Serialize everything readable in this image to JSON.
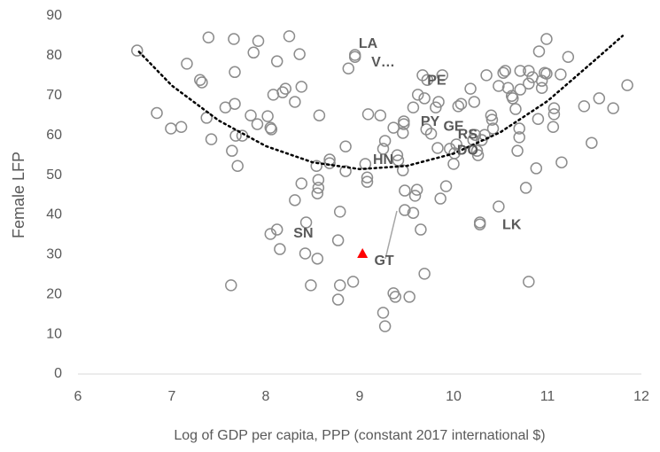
{
  "chart_data": {
    "type": "scatter",
    "x_label": "Log of GDP per capita, PPP (constant 2017 international $)",
    "y_label": "Female LFP",
    "xlim": [
      6,
      12
    ],
    "xticks": [
      6,
      7,
      8,
      9,
      10,
      11,
      12
    ],
    "ylim": [
      0,
      90
    ],
    "yticks": [
      0,
      10,
      20,
      30,
      40,
      50,
      60,
      70,
      80,
      90
    ],
    "grid": false,
    "series": [
      {
        "color": "#8c8c8c",
        "marker": "circle",
        "x": [
          6.63,
          6.84,
          6.99,
          7.1,
          7.16,
          7.3,
          7.32,
          7.39,
          7.37,
          7.42,
          7.66,
          7.67,
          7.67,
          7.57,
          7.64,
          7.68,
          7.7,
          7.75,
          7.63,
          7.87,
          7.92,
          7.84,
          7.91,
          8.02,
          8.05,
          8.06,
          8.08,
          8.12,
          8.25,
          8.36,
          8.21,
          8.18,
          8.31,
          8.38,
          8.05,
          8.12,
          8.15,
          8.38,
          8.31,
          8.43,
          8.42,
          8.48,
          8.55,
          8.54,
          8.56,
          8.56,
          8.55,
          8.57,
          8.68,
          8.68,
          8.79,
          8.77,
          8.79,
          8.77,
          8.93,
          8.85,
          8.85,
          8.88,
          8.95,
          8.95,
          9.06,
          9.08,
          9.08,
          9.09,
          9.22,
          9.25,
          9.27,
          9.25,
          9.27,
          9.36,
          9.4,
          9.41,
          9.36,
          9.38,
          9.46,
          9.47,
          9.47,
          9.46,
          9.48,
          9.48,
          9.53,
          9.57,
          9.57,
          9.61,
          9.59,
          9.62,
          9.65,
          9.67,
          9.69,
          9.69,
          9.71,
          9.76,
          9.72,
          9.84,
          9.81,
          9.86,
          9.92,
          9.83,
          9.88,
          10.0,
          9.96,
          10.01,
          10.03,
          10.05,
          10.08,
          10.18,
          10.22,
          10.21,
          10.23,
          10.25,
          10.26,
          10.3,
          10.33,
          10.35,
          10.4,
          10.41,
          10.42,
          10.28,
          10.28,
          10.48,
          10.48,
          10.53,
          10.55,
          10.58,
          10.62,
          10.63,
          10.66,
          10.7,
          10.7,
          10.68,
          10.71,
          10.71,
          10.8,
          10.8,
          10.84,
          10.77,
          10.8,
          10.88,
          10.9,
          10.91,
          10.94,
          10.94,
          10.97,
          10.99,
          10.99,
          11.07,
          11.07,
          11.06,
          11.14,
          11.22,
          11.15,
          11.39,
          11.47,
          11.55,
          11.7,
          11.85
        ],
        "values": [
          81.3,
          65.6,
          61.7,
          62.1,
          78,
          73.9,
          73.3,
          84.6,
          64.4,
          59,
          84.2,
          75.9,
          67.9,
          67,
          56.1,
          59.9,
          52.3,
          59.9,
          22.3,
          80.8,
          83.7,
          65,
          62.8,
          64.8,
          61.9,
          61.5,
          70.2,
          78.6,
          84.9,
          80.4,
          71.7,
          70.8,
          68.4,
          72.2,
          35.2,
          36.3,
          31.4,
          47.9,
          43.7,
          38.1,
          30.3,
          22.3,
          29,
          52.3,
          48.8,
          46.8,
          45.4,
          65,
          53.9,
          53,
          40.8,
          33.6,
          22.3,
          18.7,
          23.2,
          51,
          57.2,
          76.8,
          80.2,
          79.7,
          52.8,
          48.3,
          49.4,
          65.3,
          65,
          15.4,
          12,
          56.6,
          58.6,
          61.9,
          55,
          53.7,
          20.3,
          19.4,
          60.6,
          63.5,
          62.8,
          51.2,
          46.1,
          41.2,
          19.4,
          40.5,
          67,
          46.3,
          44.8,
          70.2,
          36.3,
          75.1,
          25.2,
          69.3,
          61.5,
          60.4,
          73.9,
          68.4,
          67,
          44.1,
          47.2,
          56.8,
          75.1,
          52.8,
          56.6,
          55.5,
          57.7,
          67.3,
          67.9,
          71.7,
          68.4,
          58.8,
          60.1,
          56.1,
          55,
          58.8,
          60.1,
          75.1,
          65,
          63.9,
          61.7,
          38.1,
          37.6,
          72.4,
          42.1,
          75.7,
          76.2,
          71.9,
          69.9,
          69.3,
          66.6,
          61.7,
          59.5,
          56.1,
          76.2,
          71.5,
          73,
          76.2,
          74.6,
          46.8,
          23.2,
          51.7,
          64.1,
          81.1,
          73.7,
          71.9,
          75.7,
          84.2,
          75.5,
          66.8,
          65.3,
          62.1,
          75.3,
          79.7,
          53.2,
          67.3,
          58.1,
          69.3,
          66.8,
          72.6
        ]
      },
      {
        "color": "#ff0000",
        "marker": "triangle",
        "x": [
          9.03
        ],
        "values": [
          30.3
        ]
      }
    ],
    "trendline": {
      "color": "#000000",
      "x": [
        6.65,
        7,
        7.5,
        8,
        8.5,
        9,
        9.5,
        10,
        10.5,
        11,
        11.5,
        11.8
      ],
      "y": [
        81,
        72.5,
        63.7,
        57.3,
        53.2,
        51.5,
        52.3,
        55.4,
        60.8,
        68.6,
        78.8,
        85
      ]
    },
    "annotations": [
      {
        "text": "LA",
        "x": 9.09,
        "y": 82.9
      },
      {
        "text": "V…",
        "x": 9.25,
        "y": 78.2
      },
      {
        "text": "PE",
        "x": 9.82,
        "y": 73.7
      },
      {
        "text": "PY",
        "x": 9.75,
        "y": 63.3
      },
      {
        "text": "GE",
        "x": 10.0,
        "y": 62.1
      },
      {
        "text": "RS",
        "x": 10.15,
        "y": 60.1
      },
      {
        "text": "DO",
        "x": 10.15,
        "y": 56.1
      },
      {
        "text": "HN",
        "x": 9.25,
        "y": 53.7
      },
      {
        "text": "SN",
        "x": 8.4,
        "y": 35.2
      },
      {
        "text": "GT",
        "x": 9.26,
        "y": 28.3
      },
      {
        "text": "LK",
        "x": 10.62,
        "y": 37.4
      }
    ]
  }
}
